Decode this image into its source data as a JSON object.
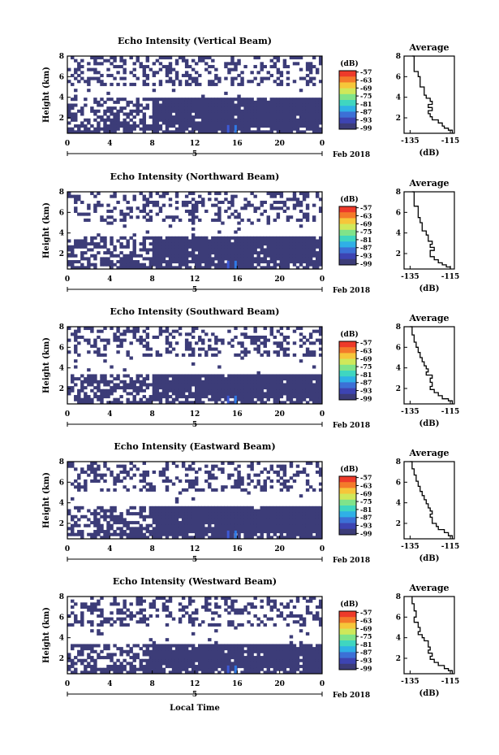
{
  "chart_data": [
    {
      "type": "heatmap",
      "title": "Echo Intensity (Vertical Beam)",
      "ylabel": "Height (km)",
      "x_ticks": [
        "0",
        "4",
        "8",
        "12",
        "16",
        "20",
        "0"
      ],
      "date_label": "5",
      "date_suffix": "Feb 2018",
      "y_ticks": [
        "2",
        "4",
        "6",
        "8"
      ],
      "xlim": [
        0,
        24
      ],
      "ylim": [
        0.5,
        8
      ],
      "colorbar": {
        "label": "(dB)",
        "ticks": [
          "-57",
          "-63",
          "-69",
          "-75",
          "-81",
          "-87",
          "-93",
          "-99"
        ],
        "range": [
          -100,
          -56
        ]
      },
      "dense_layer_km": [
        0.5,
        4.0
      ],
      "intense_echo": {
        "time_h": 15.5,
        "height_km": [
          0.5,
          1.3
        ]
      },
      "average_profile": {
        "title": "Average",
        "xlabel": "(dB)",
        "x_ticks": [
          "-135",
          "-115"
        ],
        "xlim": [
          -138,
          -113
        ],
        "y_ticks": [
          "2",
          "4",
          "6",
          "8"
        ],
        "height_km": [
          8.0,
          7.2,
          6.5,
          6.0,
          5.5,
          5.0,
          4.6,
          4.2,
          3.9,
          3.6,
          3.3,
          3.0,
          2.7,
          2.4,
          2.1,
          1.8,
          1.5,
          1.2,
          1.0,
          0.8,
          0.6
        ],
        "echo_db": [
          -134,
          -133,
          -133,
          -131,
          -130,
          -130,
          -128,
          -128,
          -127,
          -125,
          -124,
          -126,
          -124,
          -126,
          -125,
          -124,
          -121,
          -119,
          -118,
          -116,
          -114
        ]
      }
    },
    {
      "type": "heatmap",
      "title": "Echo Intensity (Northward Beam)",
      "ylabel": "Height (km)",
      "x_ticks": [
        "0",
        "4",
        "8",
        "12",
        "16",
        "20",
        "0"
      ],
      "date_label": "5",
      "date_suffix": "Feb 2018",
      "y_ticks": [
        "2",
        "4",
        "6",
        "8"
      ],
      "xlim": [
        0,
        24
      ],
      "ylim": [
        0.5,
        8
      ],
      "colorbar": {
        "label": "(dB)",
        "ticks": [
          "-57",
          "-63",
          "-69",
          "-75",
          "-81",
          "-87",
          "-93",
          "-99"
        ],
        "range": [
          -100,
          -56
        ]
      },
      "dense_layer_km": [
        0.5,
        3.8
      ],
      "intense_echo": {
        "time_h": 15.5,
        "height_km": [
          0.5,
          1.3
        ]
      },
      "average_profile": {
        "title": "Average",
        "xlabel": "(dB)",
        "x_ticks": [
          "-135",
          "-115"
        ],
        "xlim": [
          -138,
          -113
        ],
        "y_ticks": [
          "2",
          "4",
          "6",
          "8"
        ],
        "height_km": [
          8.0,
          7.3,
          6.6,
          6.0,
          5.5,
          5.0,
          4.6,
          4.2,
          3.8,
          3.5,
          3.2,
          2.9,
          2.6,
          2.3,
          2.0,
          1.7,
          1.4,
          1.1,
          0.9,
          0.7,
          0.6
        ],
        "echo_db": [
          -134,
          -133,
          -133,
          -131,
          -131,
          -130,
          -129,
          -129,
          -127,
          -126,
          -126,
          -124,
          -125,
          -123,
          -125,
          -125,
          -123,
          -121,
          -119,
          -117,
          -115
        ]
      }
    },
    {
      "type": "heatmap",
      "title": "Echo Intensity (Southward Beam)",
      "ylabel": "Height (km)",
      "x_ticks": [
        "0",
        "4",
        "8",
        "12",
        "16",
        "20",
        "0"
      ],
      "date_label": "5",
      "date_suffix": "Feb 2018",
      "y_ticks": [
        "2",
        "4",
        "6",
        "8"
      ],
      "xlim": [
        0,
        24
      ],
      "ylim": [
        0.5,
        8
      ],
      "colorbar": {
        "label": "(dB)",
        "ticks": [
          "-57",
          "-63",
          "-69",
          "-75",
          "-81",
          "-87",
          "-93",
          "-99"
        ],
        "range": [
          -100,
          -56
        ]
      },
      "dense_layer_km": [
        0.5,
        3.3
      ],
      "intense_echo": {
        "time_h": 15.5,
        "height_km": [
          0.5,
          1.3
        ]
      },
      "average_profile": {
        "title": "Average",
        "xlabel": "(dB)",
        "x_ticks": [
          "-135",
          "-115"
        ],
        "xlim": [
          -138,
          -113
        ],
        "y_ticks": [
          "2",
          "4",
          "6",
          "8"
        ],
        "height_km": [
          8.0,
          7.2,
          6.5,
          6.0,
          5.5,
          5.0,
          4.6,
          4.2,
          3.9,
          3.6,
          3.3,
          3.0,
          2.6,
          2.2,
          1.9,
          1.6,
          1.3,
          1.0,
          0.8,
          0.6
        ],
        "echo_db": [
          -135,
          -134,
          -133,
          -132,
          -131,
          -130,
          -129,
          -128,
          -127,
          -126,
          -127,
          -124,
          -125,
          -124,
          -125,
          -123,
          -121,
          -119,
          -116,
          -114
        ]
      }
    },
    {
      "type": "heatmap",
      "title": "Echo Intensity (Eastward Beam)",
      "ylabel": "Height (km)",
      "x_ticks": [
        "0",
        "4",
        "8",
        "12",
        "16",
        "20",
        "0"
      ],
      "date_label": "5",
      "date_suffix": "Feb 2018",
      "y_ticks": [
        "2",
        "4",
        "6",
        "8"
      ],
      "xlim": [
        0,
        24
      ],
      "ylim": [
        0.5,
        8
      ],
      "colorbar": {
        "label": "(dB)",
        "ticks": [
          "-57",
          "-63",
          "-69",
          "-75",
          "-81",
          "-87",
          "-93",
          "-99"
        ],
        "range": [
          -100,
          -56
        ]
      },
      "dense_layer_km": [
        0.5,
        3.8
      ],
      "intense_echo": {
        "time_h": 15.5,
        "height_km": [
          0.5,
          1.3
        ]
      },
      "average_profile": {
        "title": "Average",
        "xlabel": "(dB)",
        "x_ticks": [
          "-135",
          "-115"
        ],
        "xlim": [
          -138,
          -113
        ],
        "y_ticks": [
          "2",
          "4",
          "6",
          "8"
        ],
        "height_km": [
          8.0,
          7.3,
          6.7,
          6.1,
          5.6,
          5.1,
          4.7,
          4.3,
          3.9,
          3.5,
          3.2,
          2.9,
          2.6,
          2.3,
          2.0,
          1.7,
          1.4,
          1.1,
          0.8,
          0.6
        ],
        "echo_db": [
          -135,
          -134,
          -133,
          -132,
          -131,
          -130,
          -129,
          -128,
          -127,
          -126,
          -125,
          -124,
          -125,
          -124,
          -124,
          -122,
          -121,
          -118,
          -116,
          -114
        ]
      }
    },
    {
      "type": "heatmap",
      "title": "Echo Intensity (Westward Beam)",
      "ylabel": "Height (km)",
      "x_ticks": [
        "0",
        "4",
        "8",
        "12",
        "16",
        "20",
        "0"
      ],
      "date_label": "5",
      "date_suffix": "Feb 2018",
      "xlabel": "Local Time",
      "y_ticks": [
        "2",
        "4",
        "6",
        "8"
      ],
      "xlim": [
        0,
        24
      ],
      "ylim": [
        0.5,
        8
      ],
      "colorbar": {
        "label": "(dB)",
        "ticks": [
          "-57",
          "-63",
          "-69",
          "-75",
          "-81",
          "-87",
          "-93",
          "-99"
        ],
        "range": [
          -100,
          -56
        ]
      },
      "dense_layer_km": [
        0.5,
        3.3
      ],
      "intense_echo": {
        "time_h": 15.5,
        "height_km": [
          0.5,
          1.3
        ]
      },
      "average_profile": {
        "title": "Average",
        "xlabel": "(dB)",
        "x_ticks": [
          "-135",
          "-115"
        ],
        "xlim": [
          -138,
          -113
        ],
        "y_ticks": [
          "2",
          "4",
          "6",
          "8"
        ],
        "height_km": [
          8.0,
          7.3,
          6.6,
          6.0,
          5.5,
          5.0,
          4.6,
          4.3,
          4.0,
          3.7,
          3.4,
          3.1,
          2.8,
          2.5,
          2.2,
          1.9,
          1.6,
          1.3,
          1.0,
          0.8,
          0.6
        ],
        "echo_db": [
          -134,
          -134,
          -133,
          -132,
          -133,
          -131,
          -130,
          -131,
          -129,
          -128,
          -126,
          -126,
          -125,
          -126,
          -124,
          -125,
          -123,
          -121,
          -118,
          -116,
          -114
        ]
      }
    }
  ]
}
